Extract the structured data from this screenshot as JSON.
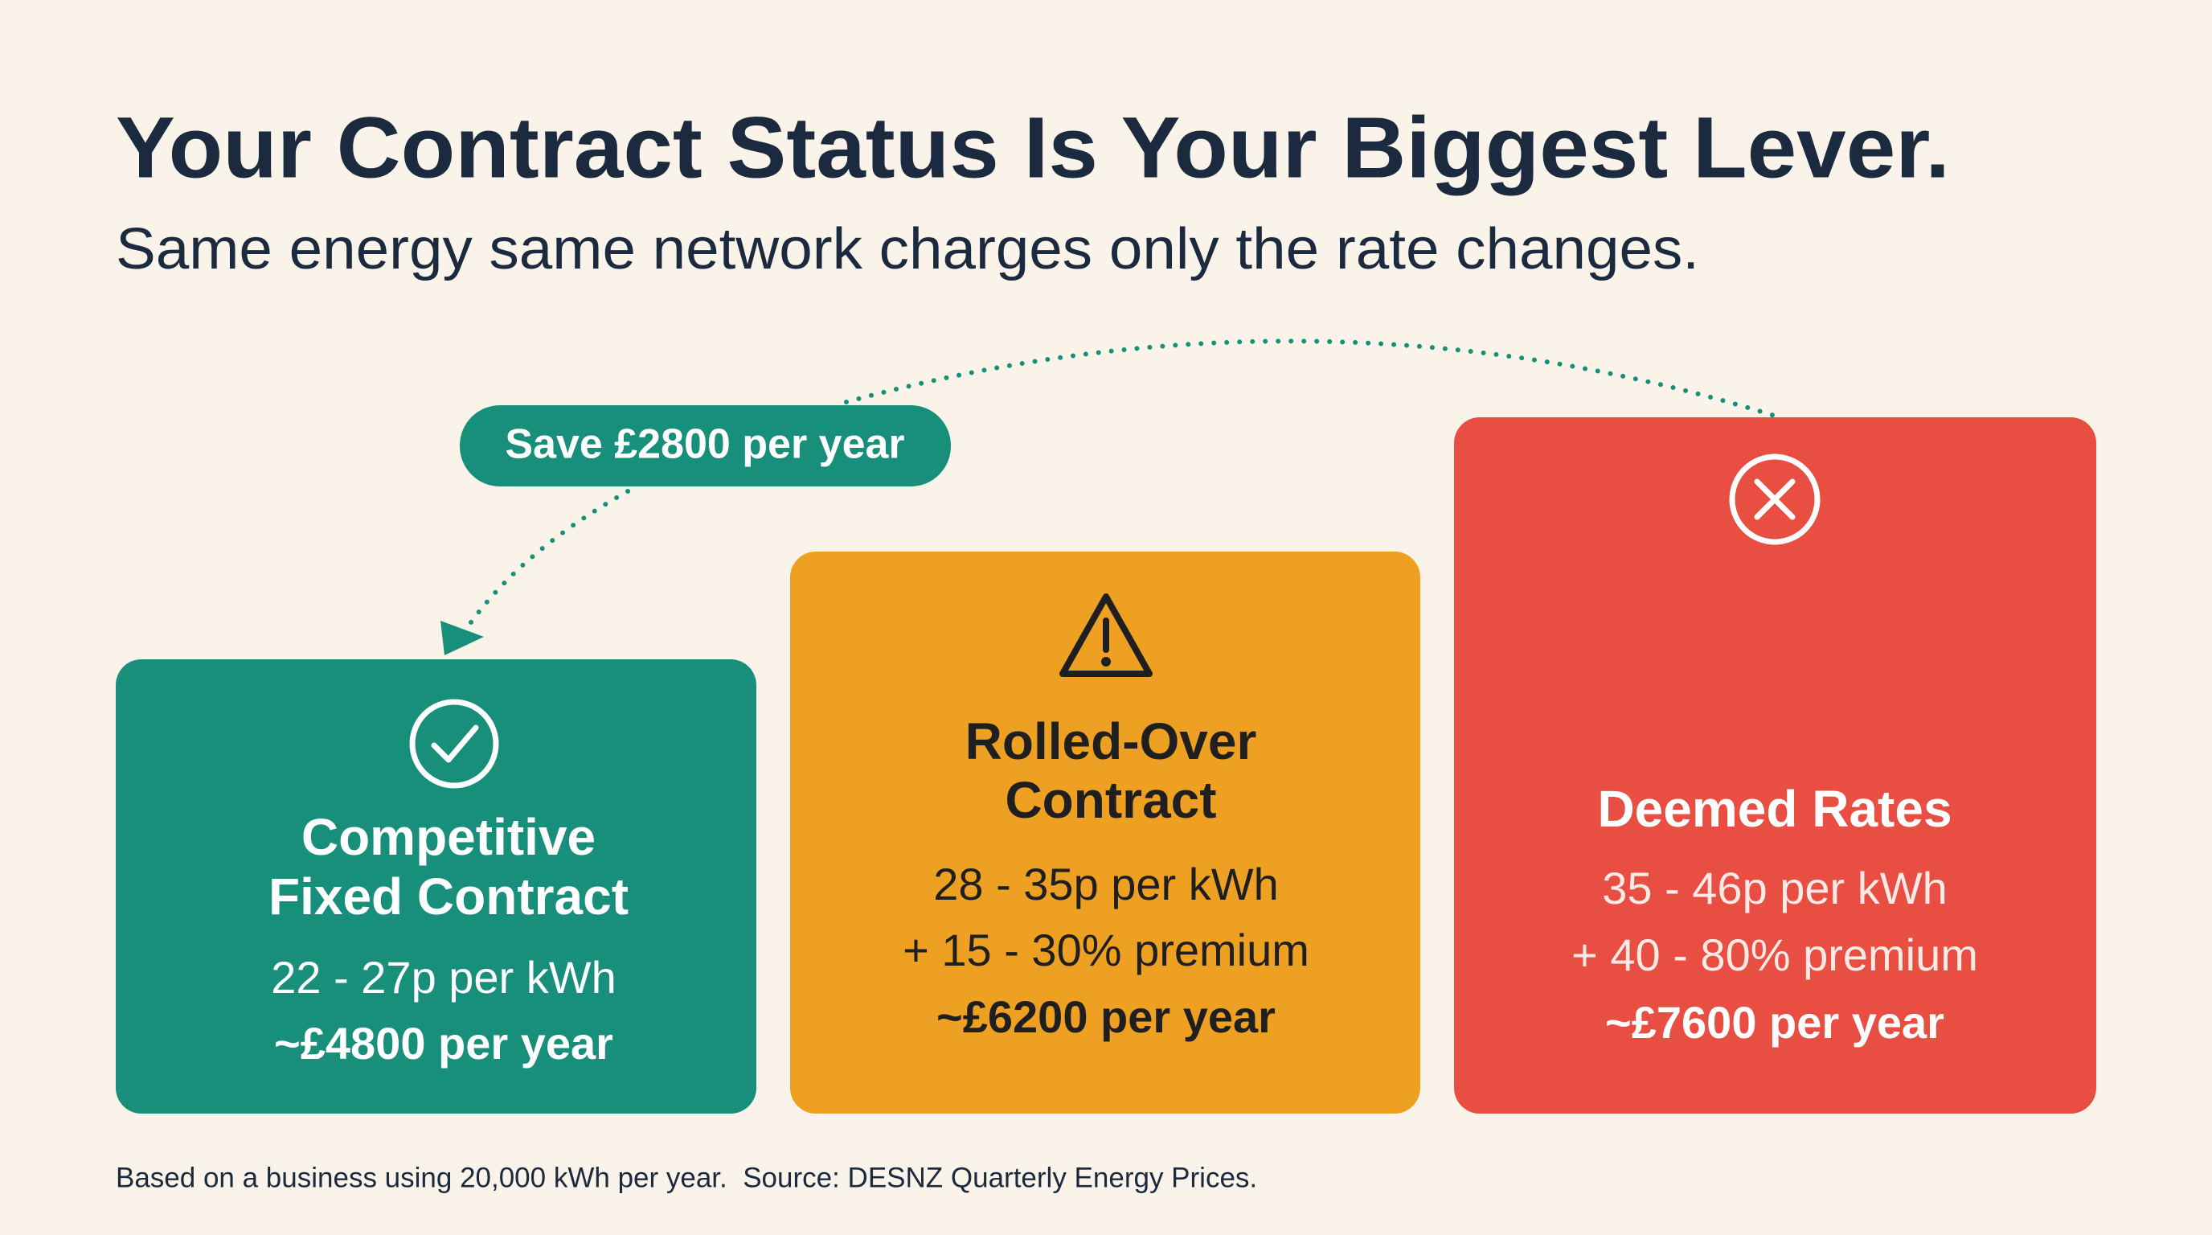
{
  "header": {
    "title": "Your Contract Status Is Your Biggest Lever.",
    "subtitle": "Same energy same network charges only the rate changes."
  },
  "callout": {
    "label": "Save £2800 per year"
  },
  "cards": [
    {
      "title": [
        "Competitive",
        "Fixed Contract"
      ],
      "rate": "22 - 27p per kWh",
      "annual": "~£4800 per year"
    },
    {
      "title": [
        "Rolled-Over",
        "Contract"
      ],
      "rate": "28 - 35p per kWh",
      "premium": "+ 15 - 30% premium",
      "annual": "~£6200 per year"
    },
    {
      "title": [
        "Deemed Rates"
      ],
      "rate": "35 - 46p per kWh",
      "premium": "+ 40 - 80% premium",
      "annual": "~£7600 per year"
    }
  ],
  "footnote": "Based on a business using 20,000 kWh per year.  Source: DESNZ Quarterly Energy Prices."
}
